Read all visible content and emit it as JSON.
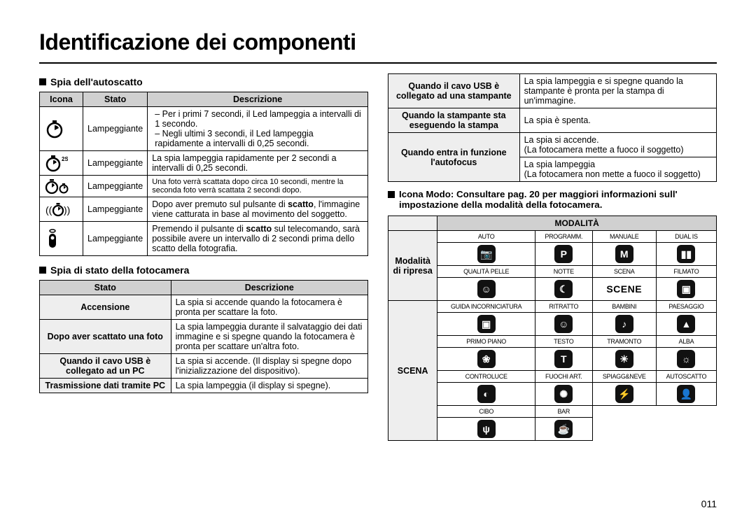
{
  "page_title": "Identificazione dei componenti",
  "page_number": "011",
  "colors": {
    "header_bg": "#d0d0d0",
    "label_bg": "#eeeeee",
    "border": "#000000",
    "text": "#000000",
    "mode_icon_bg": "#111111",
    "mode_icon_fg": "#ffffff"
  },
  "section_a": {
    "title": "Spia dell'autoscatto",
    "headers": [
      "Icona",
      "Stato",
      "Descrizione"
    ],
    "rows": [
      {
        "icon": "timer",
        "stato": "Lampeggiante",
        "desc_list": [
          "Per i primi 7 secondi, il Led lampeggia a intervalli di 1 secondo.",
          "Negli ultimi 3 secondi, il Led lampeggia rapidamente a intervalli di 0,25 secondi."
        ]
      },
      {
        "icon": "timer-2s",
        "stato": "Lampeggiante",
        "desc": "La spia lampeggia rapidamente per 2 secondi a intervalli di 0,25 secondi."
      },
      {
        "icon": "timer-double",
        "stato": "Lampeggiante",
        "desc": "Una foto verrà scattata dopo circa 10 secondi, mentre la seconda foto verrà scattata 2 secondi dopo."
      },
      {
        "icon": "motion-timer",
        "stato": "Lampeggiante",
        "desc_html": "Dopo aver premuto sul pulsante di <b>scatto</b>, l'immagine viene catturata in base al movimento del soggetto."
      },
      {
        "icon": "remote",
        "stato": "Lampeggiante",
        "desc_html": "Premendo il pulsante di <b>scatto</b> sul telecomando, sarà possibile avere un intervallo di 2 secondi prima dello scatto della fotografia."
      }
    ]
  },
  "section_b": {
    "title": "Spia di stato della fotocamera",
    "headers": [
      "Stato",
      "Descrizione"
    ],
    "rows": [
      {
        "stato": "Accensione",
        "desc": "La spia si accende quando la fotocamera è pronta per scattare la foto."
      },
      {
        "stato": "Dopo aver scattato una foto",
        "desc": "La spia lampeggia durante il salvataggio dei dati immagine e si spegne quando la fotocamera è pronta per scattare un'altra foto."
      },
      {
        "stato": "Quando il cavo USB è collegato ad un PC",
        "desc": "La spia si accende. (Il display si spegne dopo l'inizializzazione del dispositivo)."
      },
      {
        "stato": "Trasmissione dati tramite PC",
        "desc": "La spia lampeggia (il display si spegne)."
      }
    ]
  },
  "section_c": {
    "rows": [
      {
        "stato": "Quando il cavo USB è collegato ad una stampante",
        "desc": "La spia lampeggia e si spegne quando la stampante è pronta per la stampa di un'immagine."
      },
      {
        "stato": "Quando la stampante sta eseguendo la stampa",
        "desc": "La spia è spenta."
      },
      {
        "stato": "Quando entra in funzione l'autofocus",
        "desc1": "La spia si accende.\n(La fotocamera mette a fuoco il soggetto)",
        "desc2": "La spia lampeggia\n(La fotocamera non mette a fuoco il soggetto)"
      }
    ]
  },
  "section_d": {
    "note": "Icona Modo: Consultare pag. 20 per maggiori informazioni sull' impostazione della modalità della fotocamera.",
    "mode_header": "MODALITÀ",
    "ripresa_label": "Modalità di ripresa",
    "scena_label": "SCENA",
    "scene_text": "SCENE",
    "ripresa_row1_labels": [
      "AUTO",
      "PROGRAMM.",
      "MANUALE",
      "DUAL IS"
    ],
    "ripresa_row1_glyphs": [
      "📷",
      "P",
      "M",
      "▮▮"
    ],
    "ripresa_row2_labels": [
      "QUALITÀ PELLE",
      "NOTTE",
      "SCENA",
      "FILMATO"
    ],
    "ripresa_row2_glyphs": [
      "☺",
      "☾",
      "",
      "▣"
    ],
    "scena_rows": [
      {
        "labels": [
          "GUIDA INCORNICIATURA",
          "RITRATTO",
          "BAMBINI",
          "PAESAGGIO"
        ],
        "glyphs": [
          "▣",
          "☺",
          "♪",
          "▲"
        ]
      },
      {
        "labels": [
          "PRIMO PIANO",
          "TESTO",
          "TRAMONTO",
          "ALBA"
        ],
        "glyphs": [
          "❀",
          "T",
          "☀",
          "☼"
        ]
      },
      {
        "labels": [
          "CONTROLUCE",
          "FUOCHI ART.",
          "SPIAGG&NEVE",
          "AUTOSCATTO"
        ],
        "glyphs": [
          "◐",
          "✺",
          "⚡",
          "👤"
        ]
      },
      {
        "labels": [
          "CIBO",
          "BAR",
          "",
          ""
        ],
        "glyphs": [
          "ψ",
          "☕",
          "",
          ""
        ]
      }
    ]
  }
}
